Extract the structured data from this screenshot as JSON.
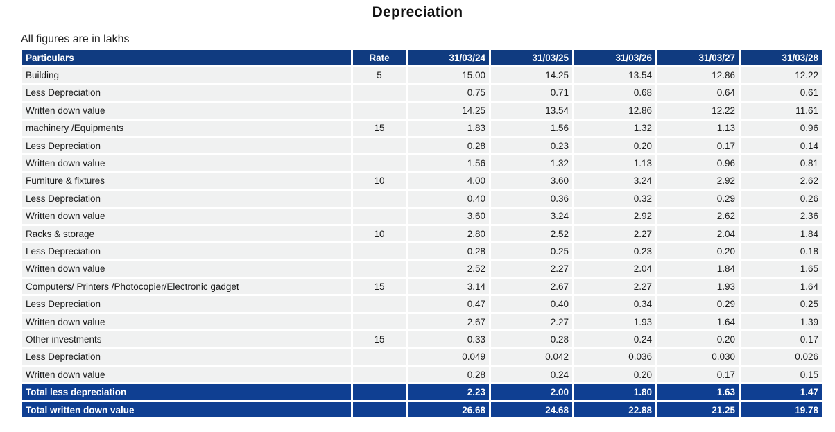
{
  "title": "Depreciation",
  "note": "All figures are in lakhs",
  "table": {
    "headers": [
      "Particulars",
      "Rate",
      "31/03/24",
      "31/03/25",
      "31/03/26",
      "31/03/27",
      "31/03/28"
    ],
    "rows": [
      {
        "label": "Building",
        "rate": "5",
        "values": [
          "15.00",
          "14.25",
          "13.54",
          "12.86",
          "12.22"
        ]
      },
      {
        "label": "Less Depreciation",
        "rate": "",
        "values": [
          "0.75",
          "0.71",
          "0.68",
          "0.64",
          "0.61"
        ]
      },
      {
        "label": "Written down value",
        "rate": "",
        "values": [
          "14.25",
          "13.54",
          "12.86",
          "12.22",
          "11.61"
        ]
      },
      {
        "label": "machinery /Equipments",
        "rate": "15",
        "values": [
          "1.83",
          "1.56",
          "1.32",
          "1.13",
          "0.96"
        ]
      },
      {
        "label": "Less Depreciation",
        "rate": "",
        "values": [
          "0.28",
          "0.23",
          "0.20",
          "0.17",
          "0.14"
        ]
      },
      {
        "label": "Written down value",
        "rate": "",
        "values": [
          "1.56",
          "1.32",
          "1.13",
          "0.96",
          "0.81"
        ]
      },
      {
        "label": "Furniture & fixtures",
        "rate": "10",
        "values": [
          "4.00",
          "3.60",
          "3.24",
          "2.92",
          "2.62"
        ]
      },
      {
        "label": "Less Depreciation",
        "rate": "",
        "values": [
          "0.40",
          "0.36",
          "0.32",
          "0.29",
          "0.26"
        ]
      },
      {
        "label": "Written down value",
        "rate": "",
        "values": [
          "3.60",
          "3.24",
          "2.92",
          "2.62",
          "2.36"
        ]
      },
      {
        "label": "Racks & storage",
        "rate": "10",
        "values": [
          "2.80",
          "2.52",
          "2.27",
          "2.04",
          "1.84"
        ]
      },
      {
        "label": "Less Depreciation",
        "rate": "",
        "values": [
          "0.28",
          "0.25",
          "0.23",
          "0.20",
          "0.18"
        ]
      },
      {
        "label": "Written down value",
        "rate": "",
        "values": [
          "2.52",
          "2.27",
          "2.04",
          "1.84",
          "1.65"
        ]
      },
      {
        "label": "Computers/ Printers /Photocopier/Electronic gadget",
        "rate": "15",
        "values": [
          "3.14",
          "2.67",
          "2.27",
          "1.93",
          "1.64"
        ]
      },
      {
        "label": "Less Depreciation",
        "rate": "",
        "values": [
          "0.47",
          "0.40",
          "0.34",
          "0.29",
          "0.25"
        ]
      },
      {
        "label": "Written down value",
        "rate": "",
        "values": [
          "2.67",
          "2.27",
          "1.93",
          "1.64",
          "1.39"
        ]
      },
      {
        "label": "Other investments",
        "rate": "15",
        "values": [
          "0.33",
          "0.28",
          "0.24",
          "0.20",
          "0.17"
        ]
      },
      {
        "label": "Less Depreciation",
        "rate": "",
        "values": [
          "0.049",
          "0.042",
          "0.036",
          "0.030",
          "0.026"
        ]
      },
      {
        "label": "Written down value",
        "rate": "",
        "values": [
          "0.28",
          "0.24",
          "0.20",
          "0.17",
          "0.15"
        ]
      },
      {
        "label": "Total less depreciation",
        "rate": "",
        "values": [
          "2.23",
          "2.00",
          "1.80",
          "1.63",
          "1.47"
        ],
        "total": true
      },
      {
        "label": "Total written down value",
        "rate": "",
        "values": [
          "26.68",
          "24.68",
          "22.88",
          "21.25",
          "19.78"
        ],
        "total": true
      }
    ]
  },
  "colors": {
    "header_bg": "#103b80",
    "total_bg": "#0f3f92",
    "row_bg": "#f0f1f1"
  }
}
